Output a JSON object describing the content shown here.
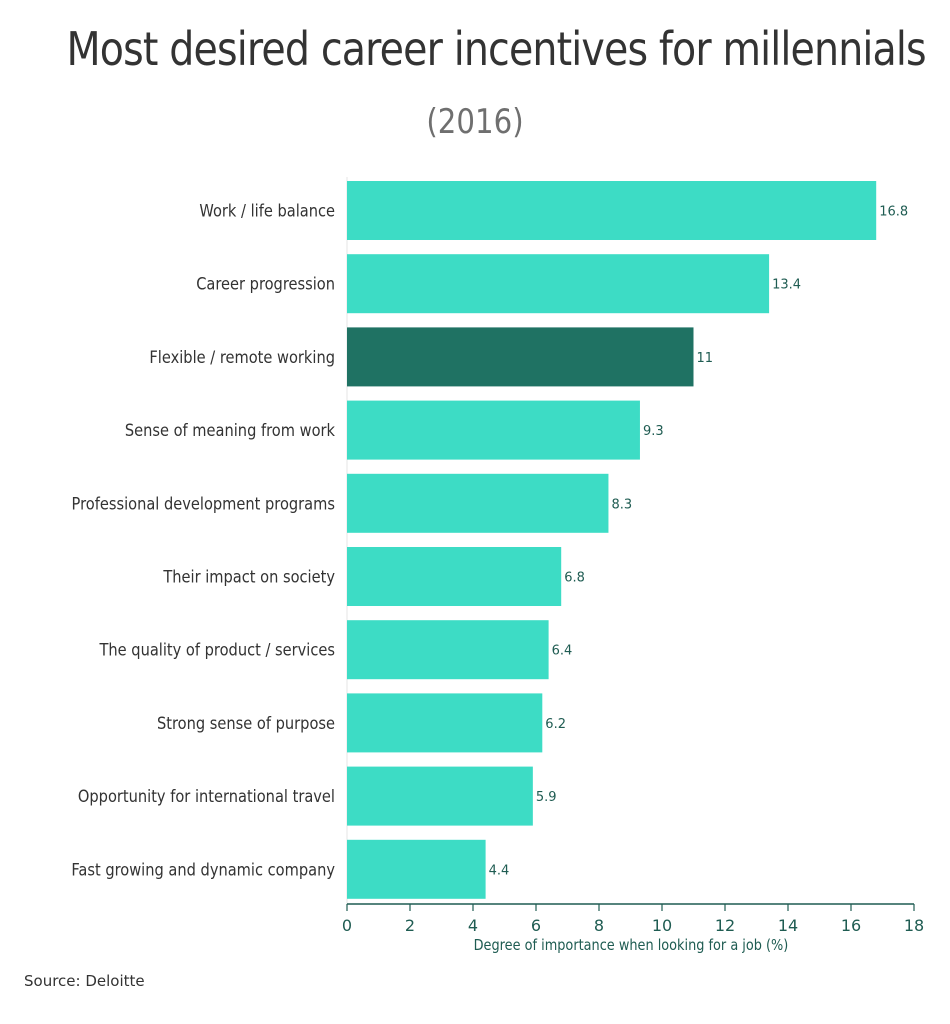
{
  "title": "Most desired career incentives for millennials",
  "subtitle": "(2016)",
  "source": "Source: Deloitte",
  "colors": {
    "bar": "#3ddcc5",
    "highlight": "#1f7263",
    "axis_text": "#1f5c52",
    "label_text": "#333333"
  },
  "chart_data": {
    "type": "bar",
    "orientation": "horizontal",
    "categories": [
      "Work / life balance",
      "Career progression",
      "Flexible / remote working",
      "Sense of meaning from work",
      "Professional development programs",
      "Their impact on society",
      "The quality of product / services",
      "Strong sense of purpose",
      "Opportunity for international travel",
      "Fast growing and dynamic company"
    ],
    "values": [
      16.8,
      13.4,
      11,
      9.3,
      8.3,
      6.8,
      6.4,
      6.2,
      5.9,
      4.4
    ],
    "value_labels": [
      "16.8",
      "13.4",
      "11",
      "9.3",
      "8.3",
      "6.8",
      "6.4",
      "6.2",
      "5.9",
      "4.4"
    ],
    "highlighted_category": "Flexible / remote working",
    "xlabel": "Degree of importance when looking for a job (%)",
    "xlim": [
      0,
      18
    ],
    "xticks": [
      0,
      2,
      4,
      6,
      8,
      10,
      12,
      14,
      16,
      18
    ],
    "grid": false
  }
}
